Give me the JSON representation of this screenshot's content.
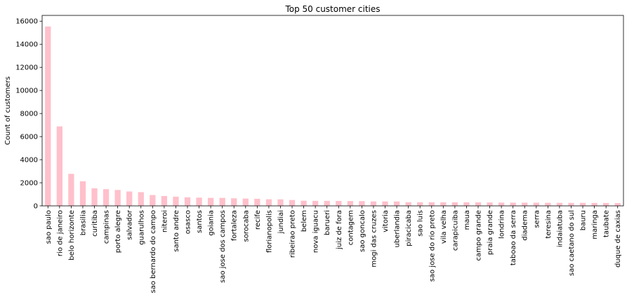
{
  "chart_data": {
    "type": "bar",
    "title": "Top 50 customer cities",
    "xlabel": "",
    "ylabel": "Count of customers",
    "ylim": [
      0,
      16500
    ],
    "yticks": [
      0,
      2000,
      4000,
      6000,
      8000,
      10000,
      12000,
      14000,
      16000
    ],
    "bar_color": "#ffc0cb",
    "grid": false,
    "categories": [
      "sao paulo",
      "rio de janeiro",
      "belo horizonte",
      "brasilia",
      "curitiba",
      "campinas",
      "porto alegre",
      "salvador",
      "guarulhos",
      "sao bernardo do campo",
      "niteroi",
      "santo andre",
      "osasco",
      "santos",
      "goiania",
      "sao jose dos campos",
      "fortaleza",
      "sorocaba",
      "recife",
      "florianopolis",
      "jundiai",
      "ribeirao preto",
      "belem",
      "nova iguacu",
      "barueri",
      "juiz de fora",
      "contagem",
      "sao goncalo",
      "mogi das cruzes",
      "vitoria",
      "uberlandia",
      "piracicaba",
      "sao luis",
      "sao jose do rio preto",
      "vila velha",
      "carapicuiba",
      "maua",
      "campo grande",
      "praia grande",
      "londrina",
      "taboao da serra",
      "diadema",
      "serra",
      "teresina",
      "indaiatuba",
      "sao caetano do sul",
      "bauru",
      "maringa",
      "taubate",
      "duque de caxias"
    ],
    "values": [
      15540,
      6882,
      2773,
      2131,
      1521,
      1444,
      1379,
      1245,
      1189,
      938,
      856,
      797,
      746,
      713,
      692,
      691,
      654,
      633,
      613,
      570,
      565,
      510,
      446,
      435,
      434,
      427,
      422,
      412,
      386,
      385,
      383,
      318,
      316,
      316,
      312,
      308,
      306,
      303,
      296,
      283,
      280,
      278,
      274,
      266,
      262,
      258,
      258,
      255,
      249,
      240
    ]
  }
}
